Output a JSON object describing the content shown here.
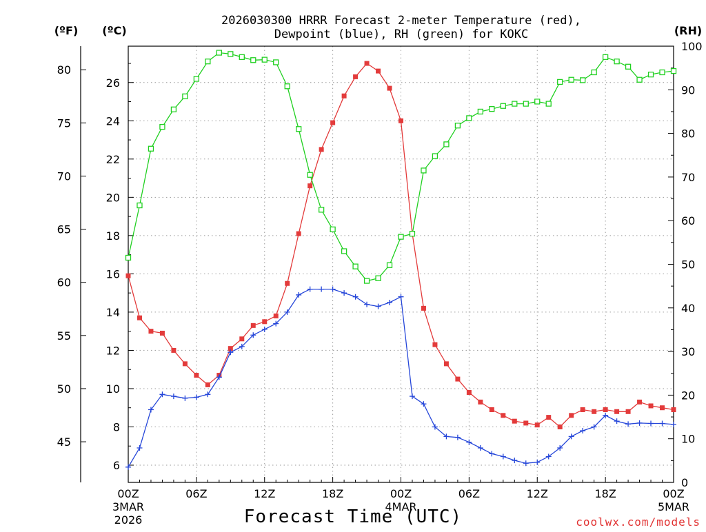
{
  "chart_data": {
    "type": "line",
    "title_lines": [
      "2026030300 HRRR Forecast 2-meter Temperature (red),",
      "Dewpoint (blue), RH (green) for KOKC"
    ],
    "xlabel": "Forecast Time (UTC)",
    "watermark": "coolwx.com/models",
    "unit_labels": {
      "fahrenheit": "(ºF)",
      "celsius": "(ºC)",
      "rh": "(RH)"
    },
    "x_range": [
      0,
      48
    ],
    "x_ticks": [
      {
        "x": 0,
        "label": "00Z",
        "label2": "3MAR",
        "label3": "2026"
      },
      {
        "x": 6,
        "label": "06Z",
        "label2": "",
        "label3": ""
      },
      {
        "x": 12,
        "label": "12Z",
        "label2": "",
        "label3": ""
      },
      {
        "x": 18,
        "label": "18Z",
        "label2": "",
        "label3": ""
      },
      {
        "x": 24,
        "label": "00Z",
        "label2": "4MAR",
        "label3": ""
      },
      {
        "x": 30,
        "label": "06Z",
        "label2": "",
        "label3": ""
      },
      {
        "x": 36,
        "label": "12Z",
        "label2": "",
        "label3": ""
      },
      {
        "x": 42,
        "label": "18Z",
        "label2": "",
        "label3": ""
      },
      {
        "x": 48,
        "label": "00Z",
        "label2": "5MAR",
        "label3": ""
      }
    ],
    "celsius_range": [
      5.1,
      27.9
    ],
    "celsius_ticks": [
      6,
      8,
      10,
      12,
      14,
      16,
      18,
      20,
      22,
      24,
      26
    ],
    "fahrenheit_ticks": [
      45,
      50,
      55,
      60,
      65,
      70,
      75,
      80
    ],
    "rh_range": [
      0,
      100
    ],
    "rh_ticks": [
      0,
      10,
      20,
      30,
      40,
      50,
      60,
      70,
      80,
      90,
      100
    ],
    "grid": true,
    "colors": {
      "temperature": "#e33b3b",
      "dewpoint": "#2546d9",
      "rh": "#20d020",
      "grid": "#9a9a9a",
      "axis": "#000000",
      "watermark": "#e13131"
    },
    "series": [
      {
        "name": "Temperature",
        "axis": "celsius",
        "marker": "filled-square",
        "values": [
          15.9,
          13.7,
          13.0,
          12.9,
          12.0,
          11.3,
          10.7,
          10.2,
          10.7,
          12.1,
          12.6,
          13.3,
          13.5,
          13.8,
          15.5,
          18.1,
          20.6,
          22.5,
          23.9,
          25.3,
          26.3,
          27.0,
          26.6,
          25.7,
          24.0,
          18.1,
          14.2,
          12.3,
          11.3,
          10.5,
          9.8,
          9.3,
          8.9,
          8.6,
          8.3,
          8.2,
          8.1,
          8.5,
          8.0,
          8.6,
          8.9,
          8.8,
          8.9,
          8.8,
          8.8,
          9.3,
          9.1,
          9.0,
          8.9
        ]
      },
      {
        "name": "Dewpoint",
        "axis": "celsius",
        "marker": "plus",
        "values": [
          5.9,
          6.9,
          8.9,
          9.7,
          9.6,
          9.5,
          9.55,
          9.7,
          10.6,
          11.9,
          12.2,
          12.8,
          13.1,
          13.4,
          14.0,
          14.9,
          15.2,
          15.2,
          15.2,
          15.0,
          14.8,
          14.4,
          14.3,
          14.5,
          14.8,
          9.6,
          9.2,
          8.0,
          7.5,
          7.45,
          7.2,
          6.9,
          6.6,
          6.45,
          6.25,
          6.1,
          6.15,
          6.45,
          6.9,
          7.5,
          7.8,
          8.0,
          8.6,
          8.3,
          8.15,
          8.2,
          8.18,
          8.18,
          8.13
        ]
      },
      {
        "name": "RH",
        "axis": "rh",
        "marker": "open-square",
        "values": [
          51.5,
          63.5,
          76.5,
          81.5,
          85.5,
          88.5,
          92.5,
          96.5,
          98.5,
          98.2,
          97.5,
          96.8,
          96.9,
          96.3,
          90.8,
          81.0,
          70.5,
          62.5,
          58.0,
          53.0,
          49.5,
          46.2,
          46.8,
          49.8,
          56.3,
          57.0,
          71.5,
          74.8,
          77.5,
          81.8,
          83.5,
          85.0,
          85.6,
          86.3,
          86.8,
          86.8,
          87.3,
          86.8,
          91.8,
          92.3,
          92.2,
          94.0,
          97.5,
          96.5,
          95.3,
          92.3,
          93.5,
          94.0,
          94.3
        ]
      }
    ]
  }
}
